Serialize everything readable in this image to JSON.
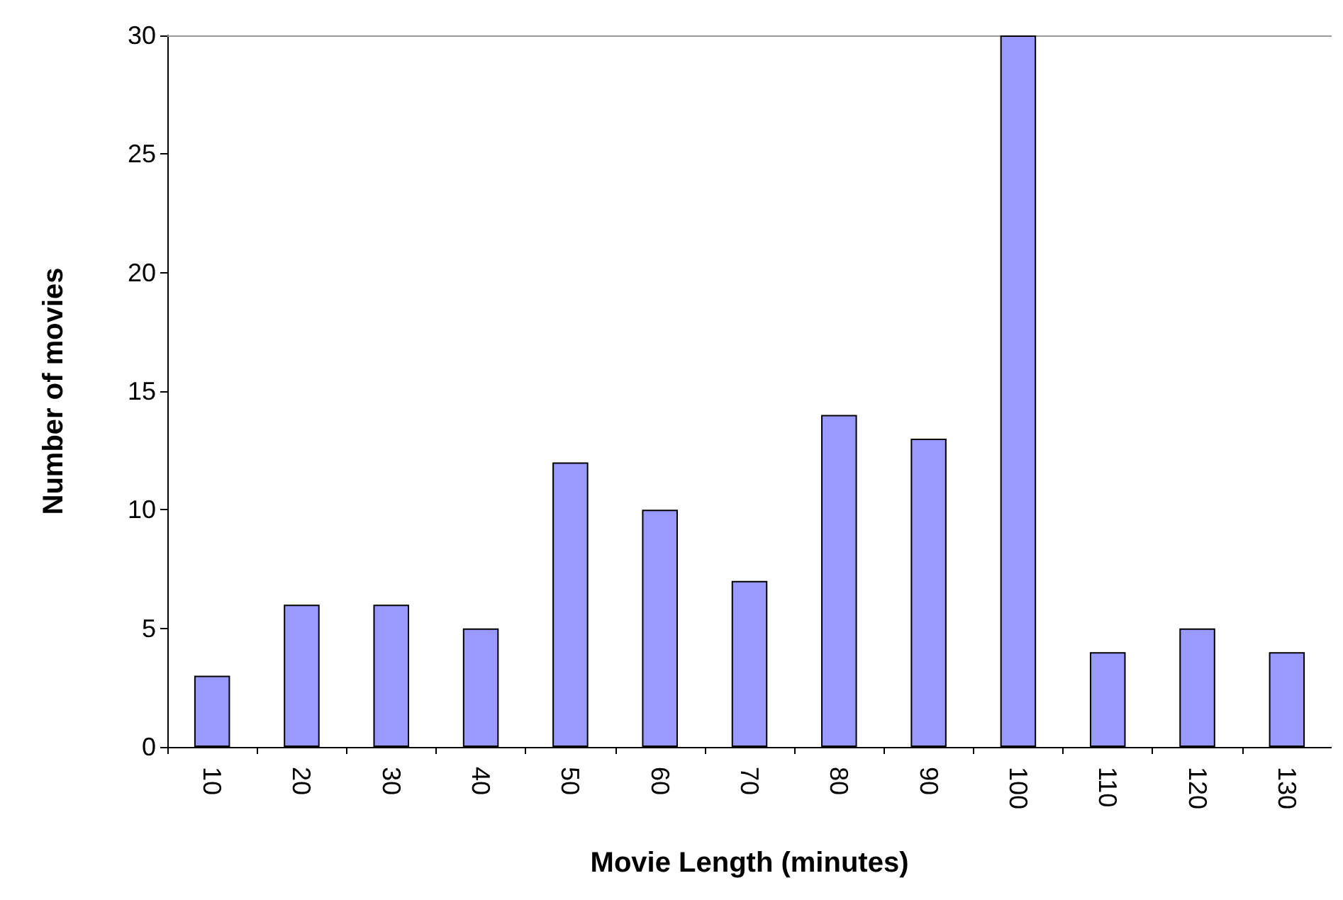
{
  "chart_data": {
    "type": "bar",
    "xlabel": "Movie Length (minutes)",
    "ylabel": "Number of movies",
    "categories": [
      "10",
      "20",
      "30",
      "40",
      "50",
      "60",
      "70",
      "80",
      "90",
      "100",
      "110",
      "120",
      "130"
    ],
    "values": [
      3,
      6,
      6,
      5,
      12,
      10,
      7,
      14,
      13,
      30,
      4,
      5,
      4
    ],
    "color": "#9999ff",
    "ylim": [
      0,
      30
    ],
    "yticks": [
      0,
      5,
      10,
      15,
      20,
      25,
      30
    ],
    "grid": false
  }
}
